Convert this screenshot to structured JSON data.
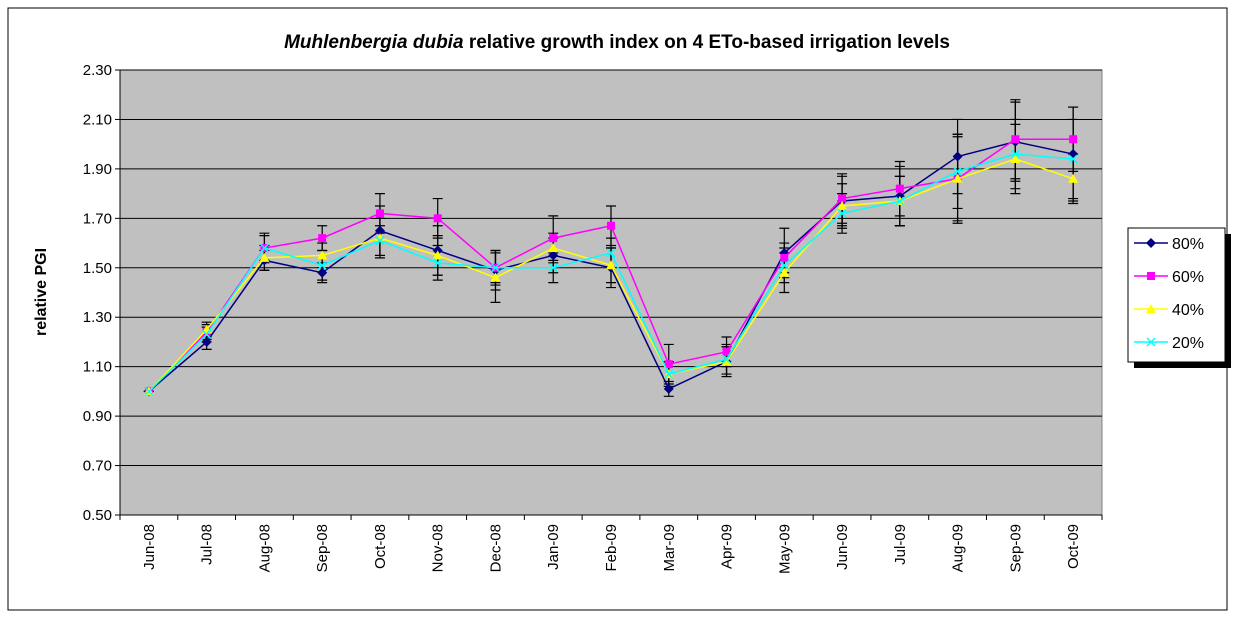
{
  "chart_data": {
    "type": "line",
    "title_species": "Muhlenbergia dubia",
    "title": "relative growth index on 4 ETo-based irrigation levels",
    "y_label": "relative PGI",
    "categories": [
      "Jun-08",
      "Jul-08",
      "Aug-08",
      "Sep-08",
      "Oct-08",
      "Nov-08",
      "Dec-08",
      "Jan-09",
      "Feb-09",
      "Mar-09",
      "Apr-09",
      "May-09",
      "Jun-09",
      "Jul-09",
      "Aug-09",
      "Sep-09",
      "Oct-09"
    ],
    "ylim": [
      0.5,
      2.3
    ],
    "yticks": [
      {
        "value": 0.5,
        "label": "0.50"
      },
      {
        "value": 0.7,
        "label": "0.70"
      },
      {
        "value": 0.9,
        "label": "0.90"
      },
      {
        "value": 1.1,
        "label": "1.10"
      },
      {
        "value": 1.3,
        "label": "1.30"
      },
      {
        "value": 1.5,
        "label": "1.50"
      },
      {
        "value": 1.7,
        "label": "1.70"
      },
      {
        "value": 1.9,
        "label": "1.90"
      },
      {
        "value": 2.1,
        "label": "2.10"
      },
      {
        "value": 2.3,
        "label": "2.30"
      }
    ],
    "grid": true,
    "legend": "right",
    "series": [
      {
        "name": "80%",
        "color": "#000080",
        "marker": "diamond",
        "values": [
          1.0,
          1.2,
          1.53,
          1.48,
          1.65,
          1.57,
          1.49,
          1.55,
          1.5,
          1.01,
          1.12,
          1.56,
          1.77,
          1.79,
          1.95,
          2.01,
          1.96
        ],
        "errors": [
          0,
          0.03,
          0.04,
          0.04,
          0.1,
          0.1,
          0.08,
          0.07,
          0.08,
          0.03,
          0.06,
          0.1,
          0.1,
          0.12,
          0.15,
          0.16,
          0.19
        ]
      },
      {
        "name": "60%",
        "color": "#ff00ff",
        "marker": "square",
        "values": [
          1.0,
          1.24,
          1.58,
          1.62,
          1.72,
          1.7,
          1.5,
          1.62,
          1.67,
          1.11,
          1.16,
          1.54,
          1.78,
          1.82,
          1.86,
          2.02,
          2.02
        ],
        "errors": [
          0,
          0.03,
          0.06,
          0.05,
          0.08,
          0.08,
          0.07,
          0.09,
          0.08,
          0.08,
          0.06,
          0.06,
          0.1,
          0.11,
          0.18,
          0.16,
          0.13
        ]
      },
      {
        "name": "40%",
        "color": "#ffff00",
        "marker": "triangle",
        "values": [
          1.0,
          1.25,
          1.54,
          1.55,
          1.62,
          1.55,
          1.46,
          1.58,
          1.51,
          1.07,
          1.12,
          1.48,
          1.75,
          1.77,
          1.86,
          1.94,
          1.86
        ],
        "errors": [
          0,
          0.03,
          0.05,
          0.05,
          0.08,
          0.08,
          0.1,
          0.06,
          0.07,
          0.05,
          0.06,
          0.08,
          0.09,
          0.1,
          0.17,
          0.14,
          0.1
        ]
      },
      {
        "name": "20%",
        "color": "#00ffff",
        "marker": "x",
        "values": [
          1.0,
          1.23,
          1.58,
          1.51,
          1.61,
          1.52,
          1.5,
          1.5,
          1.56,
          1.07,
          1.13,
          1.51,
          1.72,
          1.77,
          1.89,
          1.96,
          1.94
        ],
        "errors": [
          0,
          0.03,
          0.05,
          0.06,
          0.06,
          0.07,
          0.06,
          0.06,
          0.06,
          0.05,
          0.06,
          0.07,
          0.08,
          0.1,
          0.15,
          0.14,
          0.16
        ]
      }
    ]
  }
}
